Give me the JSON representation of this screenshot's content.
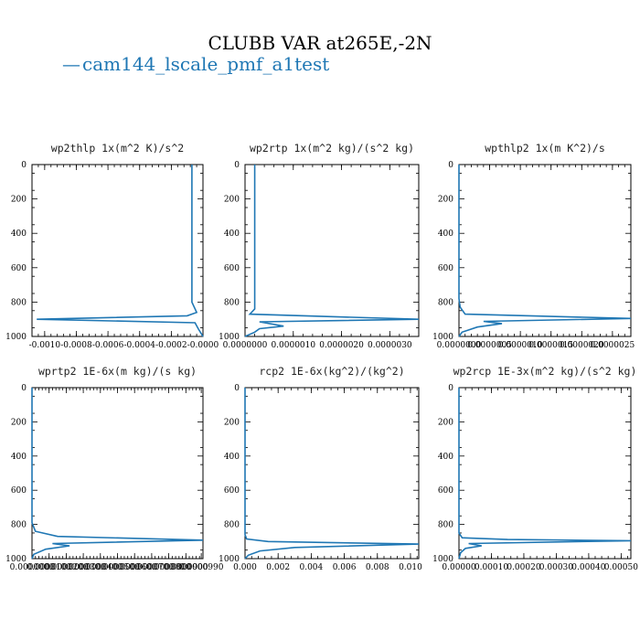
{
  "title": "CLUBB VAR at265E,-2N",
  "legend": {
    "line": "—",
    "label": "cam144_lscale_pmf_a1test",
    "color": "#1f77b4"
  },
  "chart_data": [
    {
      "type": "line",
      "title": "wp2thlp  1x(m^2 K)/s^2",
      "xlim": [
        -0.00108,
        0.0
      ],
      "xticks": [
        "-0.0010",
        "-0.0008",
        "-0.0006",
        "-0.0004",
        "-0.0002",
        "-0.0000"
      ],
      "xtick_values": [
        -0.001,
        -0.0008,
        -0.0006,
        -0.0004,
        -0.0002,
        0.0
      ],
      "ylim": [
        1000,
        0
      ],
      "yticks": [
        "0",
        "200",
        "400",
        "600",
        "800",
        "1000"
      ],
      "series": [
        {
          "x": [
            -7e-05,
            -7e-05,
            -7e-05,
            -7e-05,
            -7e-05,
            -4e-05,
            -0.0001,
            -0.00105,
            -5e-05,
            -3e-05,
            0.0
          ],
          "y": [
            0,
            200,
            400,
            600,
            800,
            860,
            880,
            900,
            920,
            955,
            1000
          ]
        }
      ]
    },
    {
      "type": "line",
      "title": "wp2rtp  1x(m^2 kg)/(s^2 kg)",
      "xlim": [
        0.0,
        3.6e-06
      ],
      "xticks": [
        "0.0000000",
        "0.0000010",
        "0.0000020",
        "0.0000030"
      ],
      "xtick_values": [
        0.0,
        1e-06,
        2e-06,
        3e-06
      ],
      "ylim": [
        1000,
        0
      ],
      "yticks": [
        "0",
        "200",
        "400",
        "600",
        "800",
        "1000"
      ],
      "series": [
        {
          "x": [
            2e-07,
            2e-07,
            2e-07,
            2e-07,
            2e-07,
            2e-07,
            1e-07,
            3.6e-06,
            3e-07,
            8e-07,
            3e-07,
            2e-07,
            0.0
          ],
          "y": [
            0,
            200,
            400,
            600,
            800,
            840,
            870,
            900,
            915,
            940,
            955,
            975,
            1000
          ]
        }
      ]
    },
    {
      "type": "line",
      "title": "wpthlp2  1x(m K^2)/s",
      "xlim": [
        0.0,
        2.8e-06
      ],
      "xticks": [
        "0.0000000",
        "0.0000005",
        "0.0000010",
        "0.0000015",
        "0.0000020",
        "0.0000025"
      ],
      "xtick_values": [
        0.0,
        5e-07,
        1e-06,
        1.5e-06,
        2e-06,
        2.5e-06
      ],
      "ylim": [
        1000,
        0
      ],
      "yticks": [
        "0",
        "200",
        "400",
        "600",
        "800",
        "1000"
      ],
      "series": [
        {
          "x": [
            0.0,
            0.0,
            2e-08,
            1e-07,
            2.8e-06,
            4e-07,
            7e-07,
            3e-07,
            5e-08,
            0.0
          ],
          "y": [
            0,
            780,
            830,
            870,
            895,
            912,
            925,
            945,
            975,
            1000
          ]
        }
      ]
    },
    {
      "type": "line",
      "title": "wprtp2  1E-6x(m kg)/(s kg)",
      "xlim": [
        0.0,
        0.0001
      ],
      "xticks": [
        "0.0000000",
        "0.0000100",
        "0.0000200",
        "0.0000300",
        "0.0000400",
        "0.0000500",
        "0.0000600",
        "0.0000700",
        "0.0000800",
        "0.0000900",
        "0.0000990"
      ],
      "xtick_values": [
        0.0,
        1e-05,
        2e-05,
        3e-05,
        4e-05,
        5e-05,
        6e-05,
        7e-05,
        8e-05,
        9e-05,
        9.9e-05
      ],
      "ylim": [
        1000,
        0
      ],
      "yticks": [
        "0",
        "200",
        "400",
        "600",
        "800",
        "1000"
      ],
      "series": [
        {
          "x": [
            0.0,
            0.0,
            2e-06,
            1.5e-05,
            0.0001,
            1.2e-05,
            2.2e-05,
            8e-06,
            1e-06,
            0.0
          ],
          "y": [
            0,
            790,
            840,
            870,
            892,
            912,
            925,
            945,
            975,
            1000
          ]
        }
      ]
    },
    {
      "type": "line",
      "title": "rcp2  1E-6x(kg^2)/(kg^2)",
      "xlim": [
        0.0,
        0.0105
      ],
      "xticks": [
        "0.000",
        "0.002",
        "0.004",
        "0.006",
        "0.008",
        "0.010"
      ],
      "xtick_values": [
        0.0,
        0.002,
        0.004,
        0.006,
        0.008,
        0.01
      ],
      "ylim": [
        1000,
        0
      ],
      "yticks": [
        "0",
        "200",
        "400",
        "600",
        "800",
        "1000"
      ],
      "series": [
        {
          "x": [
            0.0,
            0.0,
            0.0001,
            0.0014,
            0.0105,
            0.003,
            0.0009,
            0.0002,
            0.0
          ],
          "y": [
            0,
            860,
            885,
            900,
            915,
            935,
            955,
            980,
            1000
          ]
        }
      ]
    },
    {
      "type": "line",
      "title": "wp2rcp  1E-3x(m^2 kg)/(s^2 kg)",
      "xlim": [
        0.0,
        0.00053
      ],
      "xticks": [
        "0.00000",
        "0.00010",
        "0.00020",
        "0.00030",
        "0.00040",
        "0.00050"
      ],
      "xtick_values": [
        0.0,
        0.0001,
        0.0002,
        0.0003,
        0.0004,
        0.0005
      ],
      "ylim": [
        1000,
        0
      ],
      "yticks": [
        "0",
        "200",
        "400",
        "600",
        "800",
        "1000"
      ],
      "series": [
        {
          "x": [
            0.0,
            0.0,
            1e-05,
            0.00015,
            0.00053,
            3e-05,
            7e-05,
            2e-05,
            5e-06,
            0.0
          ],
          "y": [
            0,
            850,
            878,
            888,
            895,
            912,
            925,
            940,
            965,
            1000
          ]
        }
      ]
    }
  ]
}
